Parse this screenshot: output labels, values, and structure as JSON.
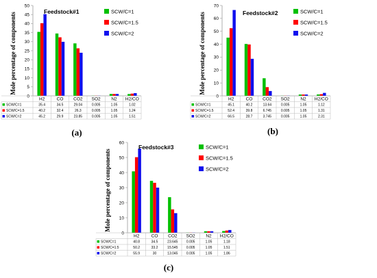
{
  "colors": {
    "SCW/C=1": "#00c000",
    "SCW/C=1.5": "#ff0000",
    "SCW/C=2": "#1010ee"
  },
  "chart_data": [
    {
      "type": "bar",
      "title": "Feedstock#1",
      "ylabel": "Mole percentage of components",
      "caption": "(a)",
      "categories": [
        "H2",
        "CO",
        "CO2",
        "SO2",
        "N2",
        "H2/CO"
      ],
      "ylim": [
        0,
        50
      ],
      "yticks": [
        0,
        5,
        10,
        15,
        20,
        25,
        30,
        35,
        40,
        45,
        50
      ],
      "legend_position": "right",
      "series": [
        {
          "name": "SCW/C=1",
          "values": [
            35.4,
            34.5,
            29.04,
            0.005,
            1.05,
            1.02
          ],
          "labels": [
            "35.4",
            "34.5",
            "29.04",
            "0.005",
            "1.05",
            "1.02"
          ]
        },
        {
          "name": "SCW/C=1.5",
          "values": [
            40.2,
            32.4,
            26.3,
            0.005,
            1.05,
            1.24
          ],
          "labels": [
            "40.2",
            "32.4",
            "26.3",
            "0.005",
            "1.05",
            "1.24"
          ]
        },
        {
          "name": "SCW/C=2",
          "values": [
            45.2,
            29.9,
            23.85,
            0.005,
            1.05,
            1.51
          ],
          "labels": [
            "45.2",
            "29.9",
            "23.85",
            "0.005",
            "1.05",
            "1.51"
          ]
        }
      ]
    },
    {
      "type": "bar",
      "title": "Feedstock#2",
      "ylabel": "Mole percentage of components",
      "caption": "(b)",
      "categories": [
        "H2",
        "CO",
        "CO2",
        "SO2",
        "N2",
        "H2/CO"
      ],
      "ylim": [
        0,
        70
      ],
      "yticks": [
        0,
        10,
        20,
        30,
        40,
        50,
        60,
        70
      ],
      "legend_position": "right",
      "series": [
        {
          "name": "SCW/C=1",
          "values": [
            45.1,
            40.2,
            13.64,
            0.005,
            1.05,
            1.12
          ],
          "labels": [
            "45.1",
            "40.2",
            "13.64",
            "0.005",
            "1.05",
            "1.12"
          ]
        },
        {
          "name": "SCW/C=1.5",
          "values": [
            52.4,
            39.8,
            6.745,
            0.005,
            1.05,
            1.31
          ],
          "labels": [
            "52.4",
            "39.8",
            "6.745",
            "0.005",
            "1.05",
            "1.31"
          ]
        },
        {
          "name": "SCW/C=2",
          "values": [
            66.5,
            28.7,
            3.745,
            0.005,
            1.05,
            2.31
          ],
          "labels": [
            "66.5",
            "28.7",
            "3.745",
            "0.005",
            "1.05",
            "2.31"
          ]
        }
      ]
    },
    {
      "type": "bar",
      "title": "Feedstock#3",
      "ylabel": "Mole percentage of components",
      "caption": "(c)",
      "categories": [
        "H2",
        "CO",
        "CO2",
        "SO2",
        "N2",
        "H2/CO"
      ],
      "ylim": [
        0,
        60
      ],
      "yticks": [
        0,
        10,
        20,
        30,
        40,
        50,
        60
      ],
      "legend_position": "right",
      "series": [
        {
          "name": "SCW/C=1",
          "values": [
            40.8,
            34.5,
            23.645,
            0.005,
            1.05,
            1.18
          ],
          "labels": [
            "40.8",
            "34.5",
            "23.645",
            "0.005",
            "1.05",
            "1.18"
          ]
        },
        {
          "name": "SCW/C=1.5",
          "values": [
            50.2,
            33.2,
            15.545,
            0.005,
            1.05,
            1.51
          ],
          "labels": [
            "50.2",
            "33.2",
            "15.545",
            "0.005",
            "1.05",
            "1.51"
          ]
        },
        {
          "name": "SCW/C=2",
          "values": [
            55.9,
            30,
            13.045,
            0.005,
            1.05,
            1.86
          ],
          "labels": [
            "55.9",
            "30",
            "13.045",
            "0.005",
            "1.05",
            "1.86"
          ]
        }
      ]
    }
  ]
}
